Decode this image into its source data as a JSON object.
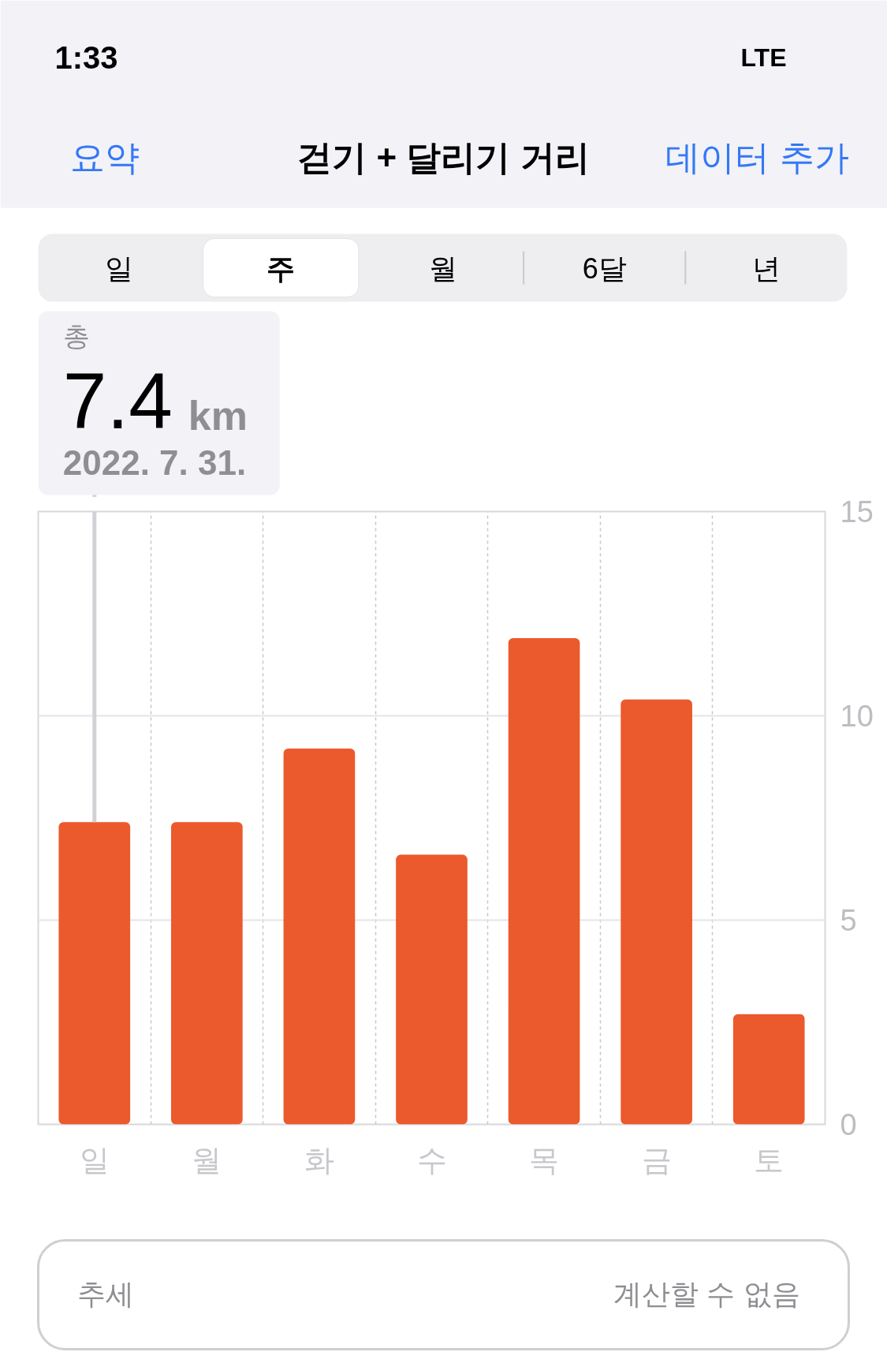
{
  "chart_data": {
    "type": "bar",
    "title": "걷기 + 달리기 거리",
    "categories": [
      "일",
      "월",
      "화",
      "수",
      "목",
      "금",
      "토"
    ],
    "values": [
      7.4,
      7.4,
      9.2,
      6.6,
      11.9,
      10.4,
      2.7
    ],
    "color": "#eb5a2c",
    "ylim": [
      0,
      15
    ],
    "yticks": [
      0,
      5,
      10,
      15
    ],
    "grid": true,
    "annotations": [
      "1:33",
      "LTE",
      "요약",
      "데이터 추가",
      "일",
      "주",
      "월",
      "6달",
      "년",
      "총",
      {
        "text": "7.4 km",
        "x": "일",
        "y": 7.4
      },
      "2022. 7. 31.",
      "추세",
      "계산할 수 없음"
    ]
  }
}
